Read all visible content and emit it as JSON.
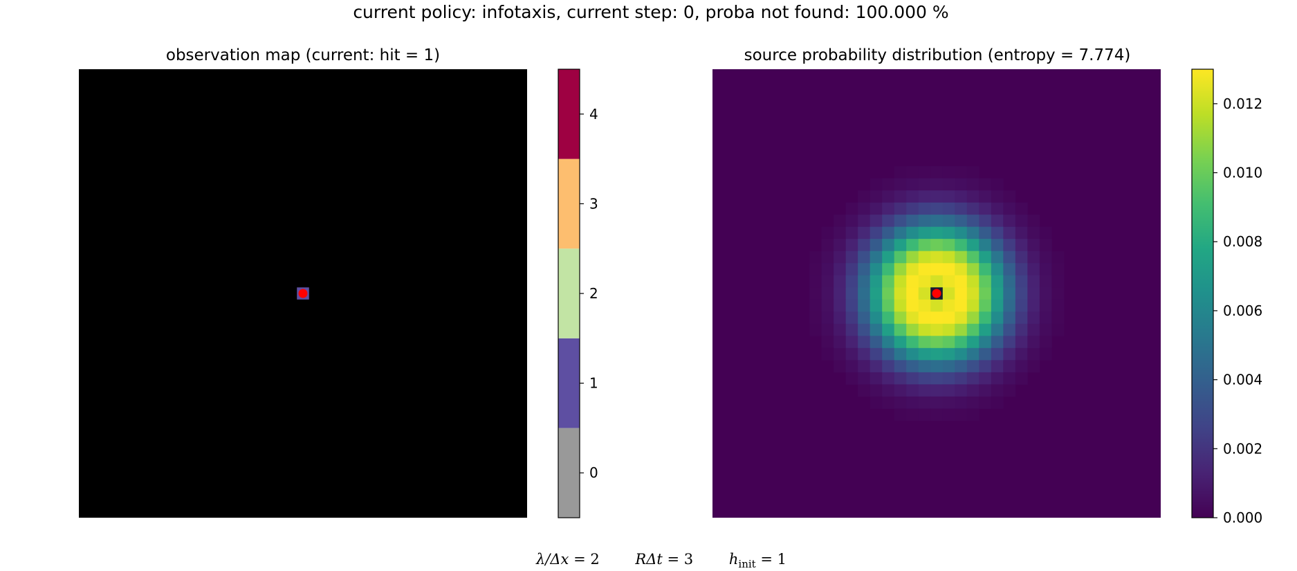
{
  "suptitle": "current policy: infotaxis, current step: 0, proba not found: 100.000 %",
  "params": {
    "lambda_label": "λ/Δx",
    "lambda_value": "2",
    "rdt_label": "RΔt",
    "rdt_value": "3",
    "hinit_symbol": "h",
    "hinit_sub": "init",
    "hinit_value": "1"
  },
  "chart_data": [
    {
      "type": "heatmap",
      "title": "observation map (current: hit = 1)",
      "grid_size": 37,
      "background_color": "#000000",
      "cells": [
        {
          "col": 18,
          "row": 18,
          "value": 1
        }
      ],
      "agent_marker": {
        "col": 18,
        "row": 18,
        "color": "#ff0000"
      },
      "colorbar": {
        "type": "discrete",
        "levels": [
          {
            "value": 0,
            "label": "0",
            "color": "#999999"
          },
          {
            "value": 1,
            "label": "1",
            "color": "#5e4fa2"
          },
          {
            "value": 2,
            "label": "2",
            "color": "#c2e4a4"
          },
          {
            "value": 3,
            "label": "3",
            "color": "#fdbe6f"
          },
          {
            "value": 4,
            "label": "4",
            "color": "#9e0142"
          }
        ]
      }
    },
    {
      "type": "heatmap",
      "title": "source probability distribution (entropy = 7.774)",
      "grid_size": 37,
      "center": {
        "col": 18,
        "row": 18
      },
      "peak_value": 0.013,
      "center_value": 0.008,
      "peak_radius_cells": 2,
      "spread_cells": 2.8,
      "support_radius_cells": 10.5,
      "colormap": "viridis",
      "agent_marker": {
        "col": 18,
        "row": 18,
        "color": "#ff0000"
      },
      "colorbar": {
        "type": "continuous",
        "vmin": 0.0,
        "vmax": 0.013,
        "ticks": [
          0.0,
          0.002,
          0.004,
          0.006,
          0.008,
          0.01,
          0.012
        ],
        "tick_labels": [
          "0.000",
          "0.002",
          "0.004",
          "0.006",
          "0.008",
          "0.010",
          "0.012"
        ]
      }
    }
  ]
}
